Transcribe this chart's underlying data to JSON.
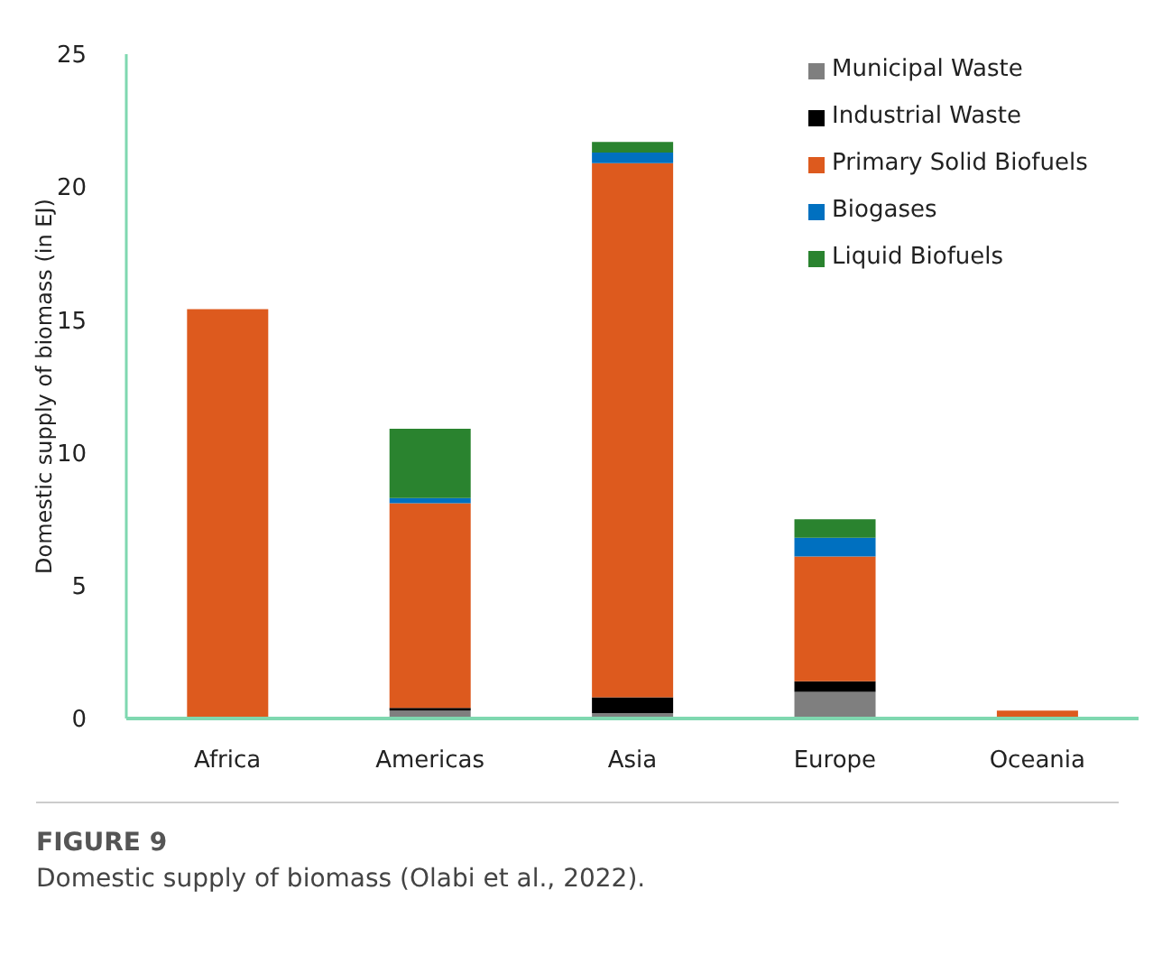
{
  "chart_data": {
    "type": "bar",
    "stacked": true,
    "ylabel": "Domestic supply of biomass (in EJ)",
    "categories": [
      "Africa",
      "Americas",
      "Asia",
      "Europe",
      "Oceania"
    ],
    "series": [
      {
        "name": "Municipal Waste",
        "color": "#7f7f7f",
        "values": [
          0,
          0.3,
          0.2,
          1.0,
          0
        ]
      },
      {
        "name": "Industrial Waste",
        "color": "#000000",
        "values": [
          0,
          0.1,
          0.6,
          0.4,
          0
        ]
      },
      {
        "name": "Primary Solid Biofuels",
        "color": "#dd5a1e",
        "values": [
          15.4,
          7.7,
          20.1,
          4.7,
          0.3
        ]
      },
      {
        "name": "Biogases",
        "color": "#0070c0",
        "values": [
          0,
          0.2,
          0.4,
          0.7,
          0
        ]
      },
      {
        "name": "Liquid Biofuels",
        "color": "#2a832f",
        "values": [
          0,
          2.6,
          0.4,
          0.7,
          0
        ]
      }
    ],
    "ylim": [
      0,
      25
    ],
    "yticks": [
      0,
      5,
      10,
      15,
      20,
      25
    ],
    "grid": false,
    "legend": "top right",
    "annotations": [
      "FIGURE 9",
      "Domestic supply of biomass (Olabi et al., 2022)."
    ]
  }
}
